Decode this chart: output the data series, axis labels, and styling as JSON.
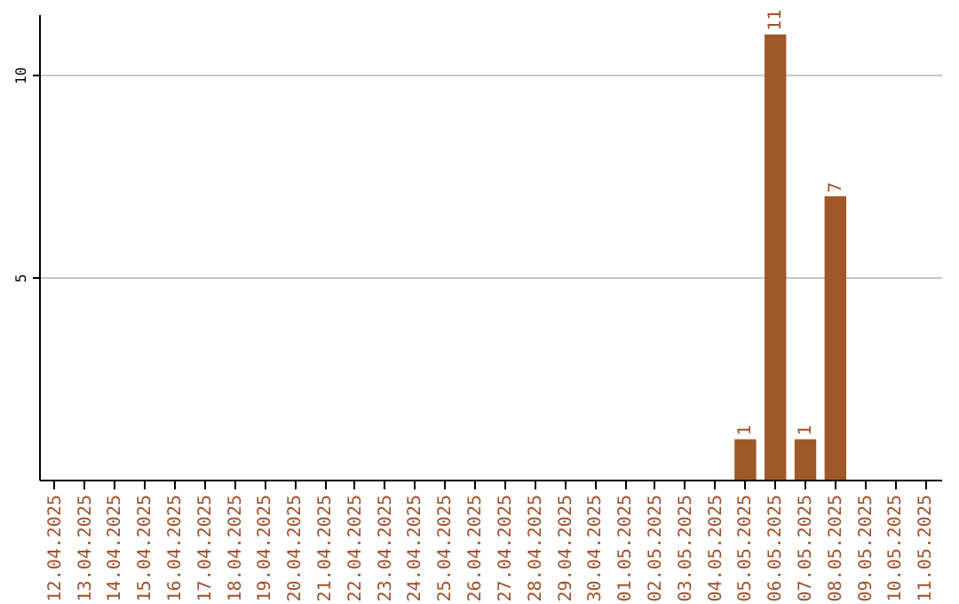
{
  "chart_data": {
    "type": "bar",
    "categories": [
      "12.04.2025",
      "13.04.2025",
      "14.04.2025",
      "15.04.2025",
      "16.04.2025",
      "17.04.2025",
      "18.04.2025",
      "19.04.2025",
      "20.04.2025",
      "21.04.2025",
      "22.04.2025",
      "23.04.2025",
      "24.04.2025",
      "25.04.2025",
      "26.04.2025",
      "27.04.2025",
      "28.04.2025",
      "29.04.2025",
      "30.04.2025",
      "01.05.2025",
      "02.05.2025",
      "03.05.2025",
      "04.05.2025",
      "05.05.2025",
      "06.05.2025",
      "07.05.2025",
      "08.05.2025",
      "09.05.2025",
      "10.05.2025",
      "11.05.2025"
    ],
    "values": [
      0,
      0,
      0,
      0,
      0,
      0,
      0,
      0,
      0,
      0,
      0,
      0,
      0,
      0,
      0,
      0,
      0,
      0,
      0,
      0,
      0,
      0,
      0,
      1,
      11,
      1,
      7,
      0,
      0,
      0
    ],
    "value_labels": [
      null,
      null,
      null,
      null,
      null,
      null,
      null,
      null,
      null,
      null,
      null,
      null,
      null,
      null,
      null,
      null,
      null,
      null,
      null,
      null,
      null,
      null,
      null,
      "1",
      "11",
      "1",
      "7",
      null,
      null,
      null
    ],
    "color": "#a0582a",
    "ylim": [
      0,
      11.5
    ],
    "yticks": [
      5,
      10
    ],
    "grid": "y"
  }
}
